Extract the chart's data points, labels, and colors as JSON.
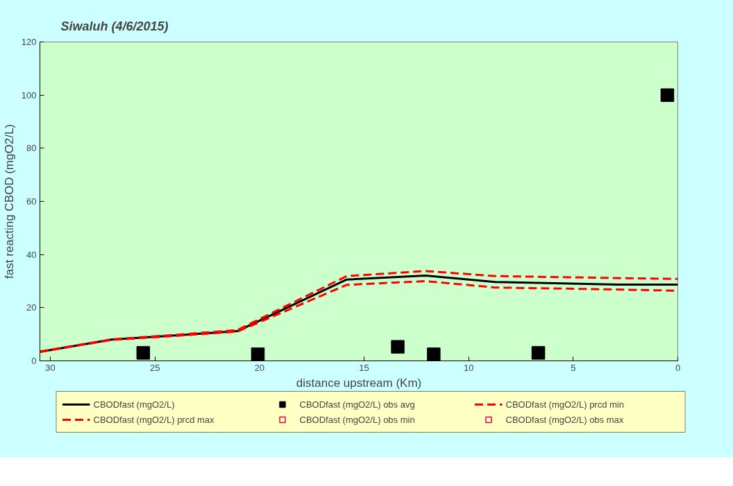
{
  "chart_data": {
    "type": "line",
    "title": "Siwaluh (4/6/2015)",
    "xlabel": "distance upstream (Km)",
    "ylabel": "fast reacting CBOD (mgO2/L)",
    "xlim": [
      30.5,
      0
    ],
    "ylim": [
      0,
      120
    ],
    "xticks": [
      30,
      25,
      20,
      15,
      10,
      5,
      0
    ],
    "yticks": [
      0,
      20,
      40,
      60,
      80,
      100,
      120
    ],
    "grid": false,
    "legend": "bottom",
    "series": [
      {
        "name": "CBODfast (mgO2/L)",
        "color": "#000000",
        "line_style": "solid",
        "x": [
          30.5,
          27.06,
          24,
          21.06,
          15.83,
          12.06,
          8.73,
          2.84,
          0
        ],
        "values": [
          3.4,
          8.0,
          9.6,
          11.2,
          30.6,
          32.1,
          29.7,
          28.7,
          28.7
        ]
      },
      {
        "name": "CBODfast (mgO2/L) obs avg",
        "type": "scatter",
        "marker": "square",
        "color": "#000000",
        "x": [
          25.56,
          20.08,
          13.39,
          11.67,
          6.67,
          0.5
        ],
        "values": [
          3.0,
          2.5,
          5.3,
          2.5,
          3.0,
          100
        ]
      },
      {
        "name": "CBODfast (mgO2/L) prcd min",
        "color": "#ff0000",
        "line_style": "dashed",
        "x": [
          30.5,
          27.06,
          24,
          21.06,
          15.83,
          12.06,
          8.73,
          4,
          0
        ],
        "values": [
          3.4,
          7.9,
          9.4,
          11.0,
          28.6,
          30.0,
          27.6,
          27.0,
          26.4
        ]
      },
      {
        "name": "CBODfast (mgO2/L) prcd max",
        "color": "#ff0000",
        "line_style": "dashed",
        "x": [
          30.5,
          27.06,
          24,
          21.06,
          15.83,
          12.06,
          8.73,
          4,
          0
        ],
        "values": [
          3.5,
          8.1,
          9.8,
          11.6,
          31.9,
          33.8,
          31.9,
          31.3,
          30.8
        ]
      },
      {
        "name": "CBODfast (mgO2/L) obs min",
        "type": "scatter",
        "marker": "square",
        "color": "#ff0000"
      },
      {
        "name": "CBODfast (mgO2/L) obs max",
        "type": "scatter",
        "marker": "square",
        "color": "#ff0000"
      }
    ]
  }
}
